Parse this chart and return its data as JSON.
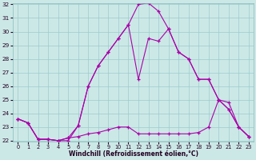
{
  "xlabel": "Windchill (Refroidissement éolien,°C)",
  "bg_color": "#cce8e6",
  "line_color": "#aa00aa",
  "grid_color": "#99cccc",
  "hours": [
    0,
    1,
    2,
    3,
    4,
    5,
    6,
    7,
    8,
    9,
    10,
    11,
    12,
    13,
    14,
    15,
    16,
    17,
    18,
    19,
    20,
    21,
    22,
    23
  ],
  "line1": [
    23.6,
    23.3,
    22.1,
    22.1,
    22.0,
    22.0,
    23.1,
    26.0,
    27.5,
    28.5,
    29.5,
    30.5,
    32.0,
    32.1,
    31.5,
    30.2,
    28.5,
    28.0,
    26.5,
    26.5,
    25.0,
    24.3,
    23.0,
    22.3
  ],
  "line2": [
    23.6,
    23.3,
    22.1,
    22.1,
    22.0,
    22.2,
    23.1,
    26.0,
    27.5,
    28.5,
    29.5,
    30.5,
    26.5,
    29.5,
    29.3,
    30.2,
    28.5,
    28.0,
    26.5,
    26.5,
    25.0,
    24.3,
    23.0,
    22.3
  ],
  "line3": [
    23.6,
    23.3,
    22.1,
    22.1,
    22.0,
    22.2,
    22.3,
    22.5,
    22.6,
    22.8,
    23.0,
    23.0,
    22.5,
    22.5,
    22.5,
    22.5,
    22.5,
    22.5,
    22.6,
    23.0,
    25.0,
    24.8,
    23.0,
    22.3
  ],
  "ylim_min": 22,
  "ylim_max": 32,
  "yticks": [
    22,
    23,
    24,
    25,
    26,
    27,
    28,
    29,
    30,
    31,
    32
  ],
  "xticks": [
    0,
    1,
    2,
    3,
    4,
    5,
    6,
    7,
    8,
    9,
    10,
    11,
    12,
    13,
    14,
    15,
    16,
    17,
    18,
    19,
    20,
    21,
    22,
    23
  ]
}
